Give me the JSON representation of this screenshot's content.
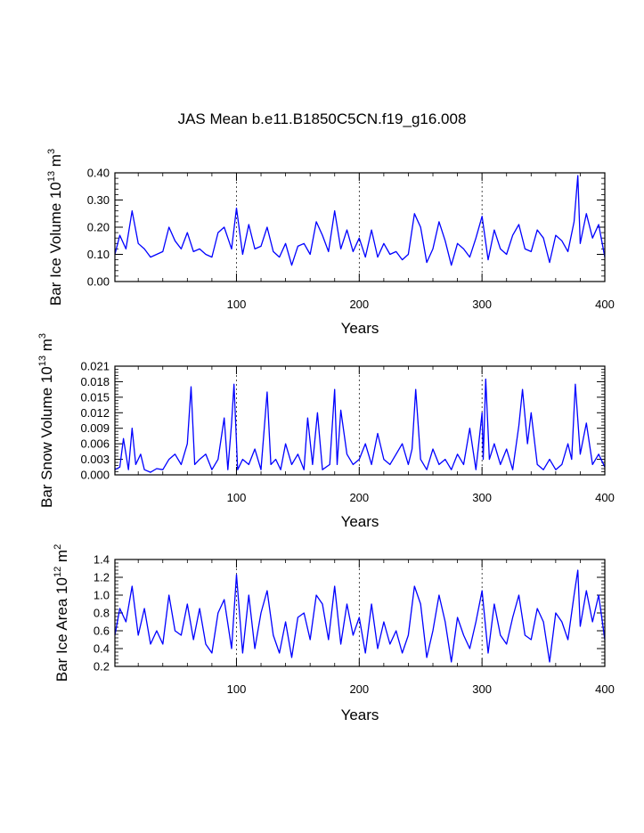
{
  "title": "JAS Mean b.e11.B1850C5CN.f19_g16.008",
  "chart_data": [
    {
      "type": "line",
      "ylabel": "Bar Ice Volume 10",
      "ylabel_exp": "13",
      "ylabel_unit": " m",
      "ylabel_unit_exp": "3",
      "xlabel": "Years",
      "xlim": [
        1,
        400
      ],
      "ylim": [
        0.0,
        0.4
      ],
      "yticks": [
        0.0,
        0.1,
        0.2,
        0.3,
        0.4
      ],
      "yticklabels": [
        "0.00",
        "0.10",
        "0.20",
        "0.30",
        "0.40"
      ],
      "xticks": [
        100,
        200,
        300,
        400
      ],
      "xticklabels": [
        "100",
        "200",
        "300",
        "400"
      ],
      "vgrid": [
        100,
        200,
        300
      ],
      "color": "#0000ff",
      "series": {
        "name": "Bar Ice Volume",
        "x": [
          1,
          5,
          10,
          15,
          20,
          25,
          30,
          35,
          40,
          45,
          50,
          55,
          60,
          65,
          70,
          75,
          80,
          85,
          90,
          96,
          100,
          105,
          110,
          115,
          120,
          125,
          130,
          135,
          140,
          145,
          150,
          155,
          160,
          165,
          170,
          175,
          180,
          185,
          190,
          195,
          200,
          205,
          210,
          215,
          220,
          225,
          230,
          235,
          240,
          245,
          250,
          255,
          260,
          265,
          270,
          275,
          280,
          285,
          290,
          295,
          300,
          305,
          310,
          315,
          320,
          325,
          330,
          335,
          340,
          345,
          350,
          355,
          360,
          365,
          370,
          375,
          378,
          380,
          385,
          390,
          395,
          400
        ],
        "values": [
          0.1,
          0.17,
          0.12,
          0.26,
          0.14,
          0.12,
          0.09,
          0.1,
          0.11,
          0.2,
          0.15,
          0.12,
          0.18,
          0.11,
          0.12,
          0.1,
          0.09,
          0.18,
          0.2,
          0.12,
          0.27,
          0.1,
          0.21,
          0.12,
          0.13,
          0.2,
          0.11,
          0.09,
          0.14,
          0.06,
          0.13,
          0.14,
          0.1,
          0.22,
          0.17,
          0.11,
          0.26,
          0.12,
          0.19,
          0.11,
          0.16,
          0.09,
          0.19,
          0.09,
          0.14,
          0.1,
          0.11,
          0.08,
          0.1,
          0.25,
          0.2,
          0.07,
          0.12,
          0.22,
          0.15,
          0.06,
          0.14,
          0.12,
          0.09,
          0.16,
          0.24,
          0.08,
          0.19,
          0.12,
          0.1,
          0.17,
          0.21,
          0.12,
          0.11,
          0.19,
          0.16,
          0.07,
          0.17,
          0.15,
          0.11,
          0.22,
          0.39,
          0.14,
          0.25,
          0.16,
          0.21,
          0.09
        ]
      }
    },
    {
      "type": "line",
      "ylabel": "Bar Snow Volume 10",
      "ylabel_exp": "13",
      "ylabel_unit": " m",
      "ylabel_unit_exp": "3",
      "xlabel": "Years",
      "xlim": [
        1,
        400
      ],
      "ylim": [
        0.0,
        0.021
      ],
      "yticks": [
        0.0,
        0.003,
        0.006,
        0.009,
        0.012,
        0.015,
        0.018,
        0.021
      ],
      "yticklabels": [
        "0.000",
        "0.003",
        "0.006",
        "0.009",
        "0.012",
        "0.015",
        "0.018",
        "0.021"
      ],
      "xticks": [
        100,
        200,
        300,
        400
      ],
      "xticklabels": [
        "100",
        "200",
        "300",
        "400"
      ],
      "vgrid": [
        100,
        200,
        300
      ],
      "color": "#0000ff",
      "series": {
        "name": "Bar Snow Volume",
        "x": [
          1,
          5,
          8,
          12,
          15,
          18,
          22,
          25,
          30,
          35,
          40,
          45,
          50,
          55,
          60,
          63,
          66,
          70,
          75,
          80,
          85,
          90,
          93,
          96,
          98,
          101,
          105,
          110,
          115,
          120,
          125,
          128,
          132,
          136,
          140,
          145,
          150,
          155,
          158,
          162,
          166,
          170,
          176,
          180,
          182,
          185,
          190,
          195,
          200,
          205,
          210,
          215,
          220,
          225,
          230,
          235,
          240,
          243,
          246,
          250,
          255,
          260,
          265,
          270,
          275,
          280,
          285,
          290,
          295,
          300,
          301,
          303,
          306,
          310,
          315,
          320,
          325,
          330,
          333,
          337,
          340,
          345,
          350,
          355,
          360,
          365,
          370,
          373,
          376,
          380,
          385,
          390,
          395,
          400
        ],
        "values": [
          0.001,
          0.0015,
          0.007,
          0.001,
          0.009,
          0.002,
          0.004,
          0.001,
          0.0005,
          0.0012,
          0.001,
          0.003,
          0.004,
          0.002,
          0.006,
          0.017,
          0.002,
          0.003,
          0.004,
          0.001,
          0.003,
          0.011,
          0.001,
          0.01,
          0.0175,
          0.001,
          0.003,
          0.002,
          0.005,
          0.001,
          0.016,
          0.002,
          0.003,
          0.001,
          0.006,
          0.002,
          0.004,
          0.001,
          0.011,
          0.002,
          0.012,
          0.001,
          0.002,
          0.0165,
          0.002,
          0.0125,
          0.004,
          0.002,
          0.003,
          0.006,
          0.002,
          0.008,
          0.003,
          0.002,
          0.004,
          0.006,
          0.002,
          0.005,
          0.0165,
          0.003,
          0.001,
          0.005,
          0.002,
          0.003,
          0.001,
          0.004,
          0.002,
          0.009,
          0.001,
          0.012,
          0.003,
          0.0185,
          0.003,
          0.006,
          0.002,
          0.005,
          0.001,
          0.0095,
          0.0165,
          0.006,
          0.012,
          0.002,
          0.001,
          0.003,
          0.001,
          0.002,
          0.006,
          0.003,
          0.0175,
          0.004,
          0.01,
          0.002,
          0.004,
          0.0015
        ]
      }
    },
    {
      "type": "line",
      "ylabel": "Bar Ice Area 10",
      "ylabel_exp": "12",
      "ylabel_unit": " m",
      "ylabel_unit_exp": "2",
      "xlabel": "Years",
      "xlim": [
        1,
        400
      ],
      "ylim": [
        0.2,
        1.4
      ],
      "yticks": [
        0.2,
        0.4,
        0.6,
        0.8,
        1.0,
        1.2,
        1.4
      ],
      "yticklabels": [
        "0.2",
        "0.4",
        "0.6",
        "0.8",
        "1.0",
        "1.2",
        "1.4"
      ],
      "xticks": [
        100,
        200,
        300,
        400
      ],
      "xticklabels": [
        "100",
        "200",
        "300",
        "400"
      ],
      "vgrid": [
        100,
        200,
        300
      ],
      "color": "#0000ff",
      "series": {
        "name": "Bar Ice Area",
        "x": [
          1,
          5,
          10,
          15,
          20,
          25,
          30,
          35,
          40,
          45,
          50,
          55,
          60,
          65,
          70,
          75,
          80,
          85,
          90,
          96,
          100,
          105,
          110,
          115,
          120,
          125,
          130,
          135,
          140,
          145,
          150,
          155,
          160,
          165,
          170,
          175,
          180,
          185,
          190,
          195,
          200,
          205,
          210,
          215,
          220,
          225,
          230,
          235,
          240,
          245,
          250,
          255,
          260,
          265,
          270,
          275,
          280,
          285,
          290,
          295,
          300,
          305,
          310,
          315,
          320,
          325,
          330,
          335,
          340,
          345,
          350,
          355,
          360,
          365,
          370,
          375,
          378,
          380,
          385,
          390,
          395,
          400
        ],
        "values": [
          0.55,
          0.85,
          0.7,
          1.1,
          0.55,
          0.85,
          0.45,
          0.6,
          0.45,
          1.0,
          0.6,
          0.55,
          0.9,
          0.5,
          0.85,
          0.45,
          0.35,
          0.8,
          0.95,
          0.4,
          1.23,
          0.35,
          1.0,
          0.4,
          0.8,
          1.05,
          0.55,
          0.35,
          0.7,
          0.3,
          0.75,
          0.8,
          0.5,
          1.0,
          0.9,
          0.5,
          1.1,
          0.45,
          0.9,
          0.55,
          0.75,
          0.35,
          0.9,
          0.4,
          0.7,
          0.45,
          0.6,
          0.35,
          0.55,
          1.1,
          0.9,
          0.3,
          0.6,
          1.0,
          0.7,
          0.25,
          0.75,
          0.55,
          0.4,
          0.7,
          1.05,
          0.35,
          0.9,
          0.55,
          0.45,
          0.75,
          1.0,
          0.55,
          0.5,
          0.85,
          0.7,
          0.25,
          0.8,
          0.7,
          0.5,
          1.0,
          1.28,
          0.65,
          1.05,
          0.7,
          1.0,
          0.5
        ]
      }
    }
  ]
}
